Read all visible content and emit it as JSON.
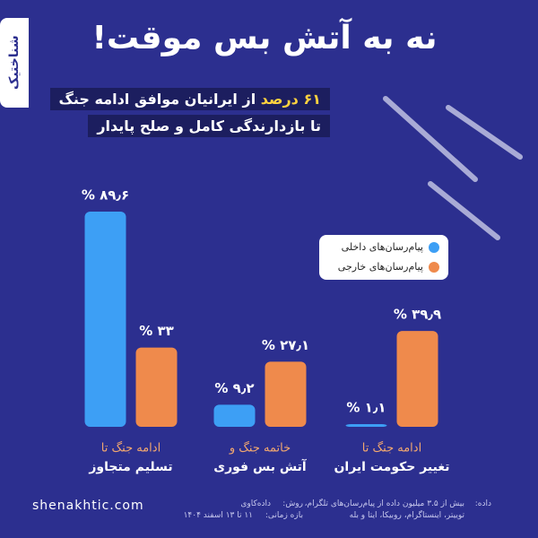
{
  "chart_data": {
    "type": "bar",
    "title": "نه به آتش بس موقت!",
    "subtitle": {
      "highlight": "۶۱ درصد",
      "line1": "از ایرانیان موافق ادامه جنگ",
      "line2": "تا بازدارندگی کامل و صلح پایدار"
    },
    "categories": [
      [
        "ادامه جنگ تا",
        "تسلیم متجاوز"
      ],
      [
        "خاتمه جنگ و",
        "آتش بس فوری"
      ],
      [
        "ادامه جنگ تا",
        "تغییر حکومت ایران"
      ]
    ],
    "series": [
      {
        "name": "پیام‌رسان‌های داخلی",
        "color": "#3d9ff5",
        "values": [
          89.6,
          9.2,
          1.1
        ],
        "value_labels": [
          "۸۹٫۶ %",
          "۹٫۲ %",
          "۱٫۱ %"
        ]
      },
      {
        "name": "پیام‌رسان‌های خارجی",
        "color": "#ef8a4c",
        "values": [
          33,
          27.1,
          39.9
        ],
        "value_labels": [
          "۳۳ %",
          "۲۷٫۱ %",
          "۳۹٫۹ %"
        ]
      }
    ],
    "brand": "شناختیک",
    "website": "shenakhtic.com",
    "notes": {
      "data_label": "داده:",
      "data_line1": "بیش از ۳.۵ میلیون داده از پیام‌رسان‌های تلگرام،",
      "data_line2": "توییتر، اینستاگرام، روبیکا، ایتا و بله",
      "method_label": "روش:",
      "method": "داده‌کاوی",
      "period_label": "بازه زمانی:",
      "period": "۱۱ تا ۱۳ اسفند ۱۴۰۴"
    }
  }
}
